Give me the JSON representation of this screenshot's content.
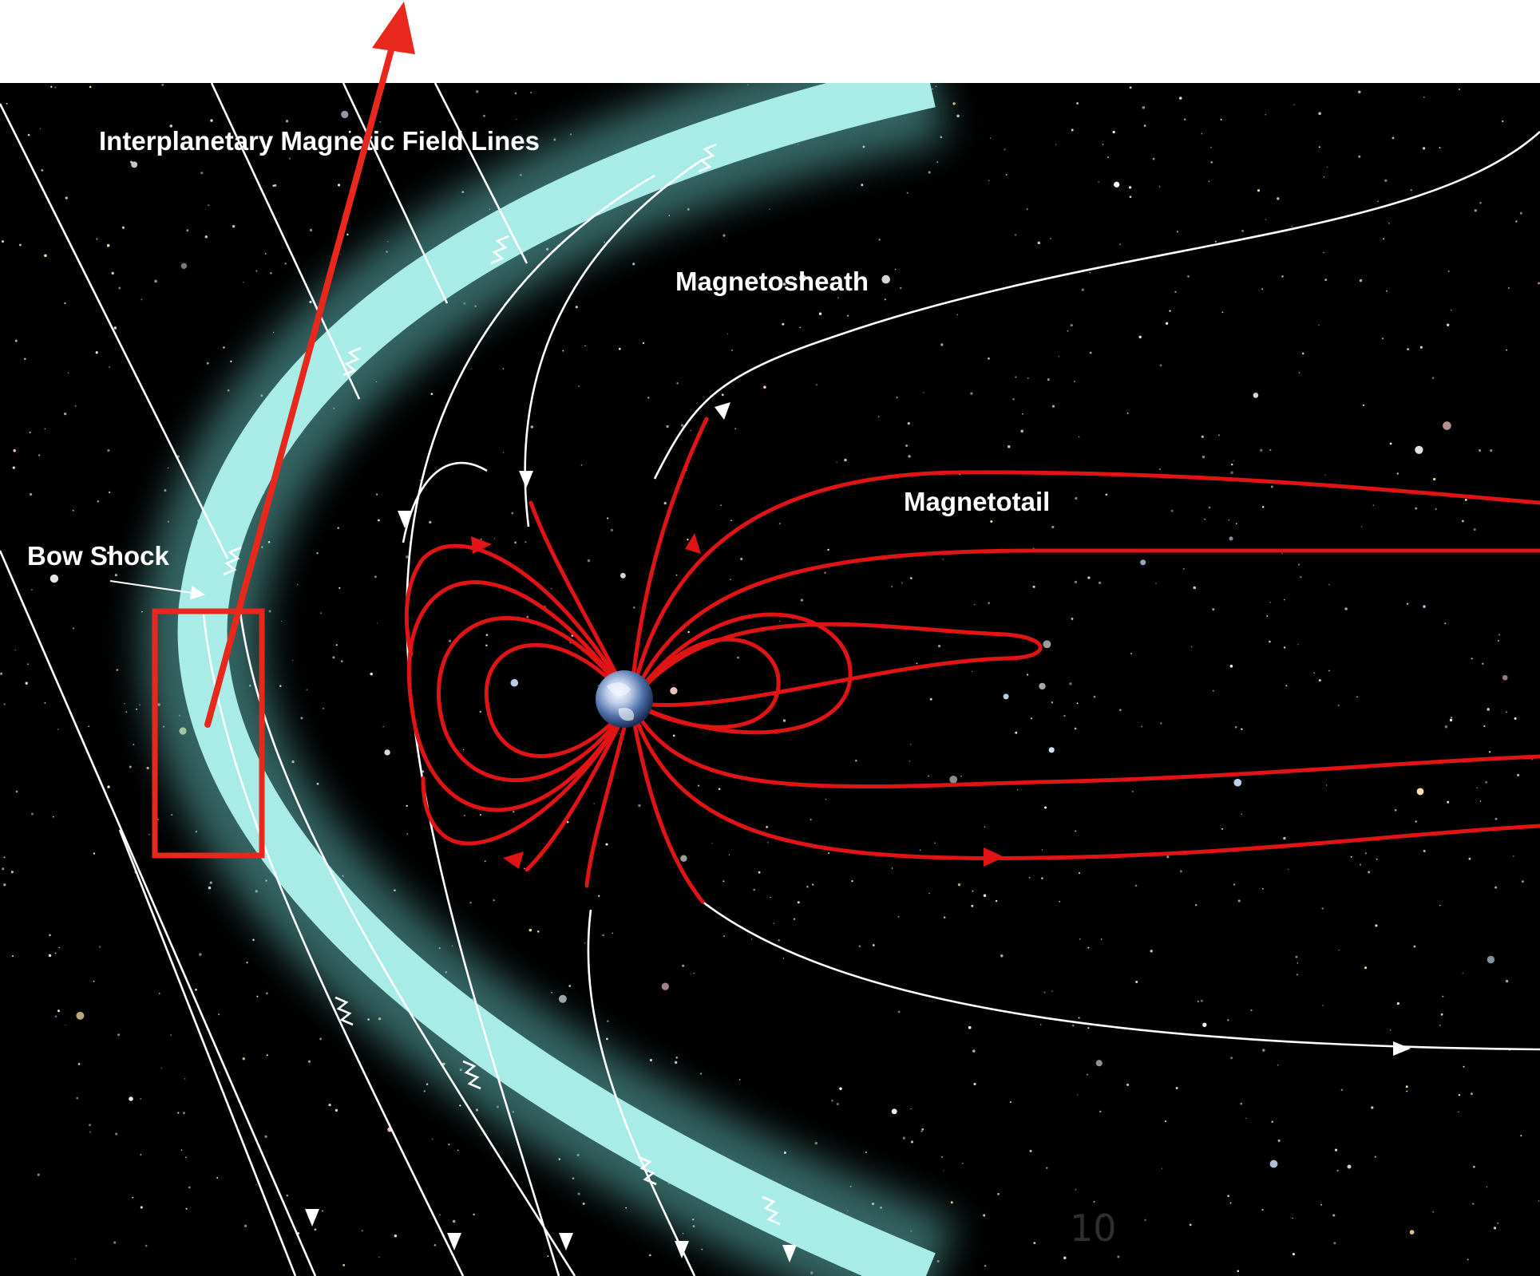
{
  "labels": {
    "imf_lines": "Interplanetary Magnetic Field Lines",
    "magnetosheath": "Magnetosheath",
    "magnetotail": "Magnetotail",
    "bow_shock": "Bow Shock"
  },
  "slide_number": "10",
  "colors": {
    "space": "#000000",
    "sheath": "#9fe4e0",
    "field_line": "#ffffff",
    "magnetosphere_line": "#e01414",
    "annotation": "#e8281c",
    "page": "#ffffff"
  }
}
